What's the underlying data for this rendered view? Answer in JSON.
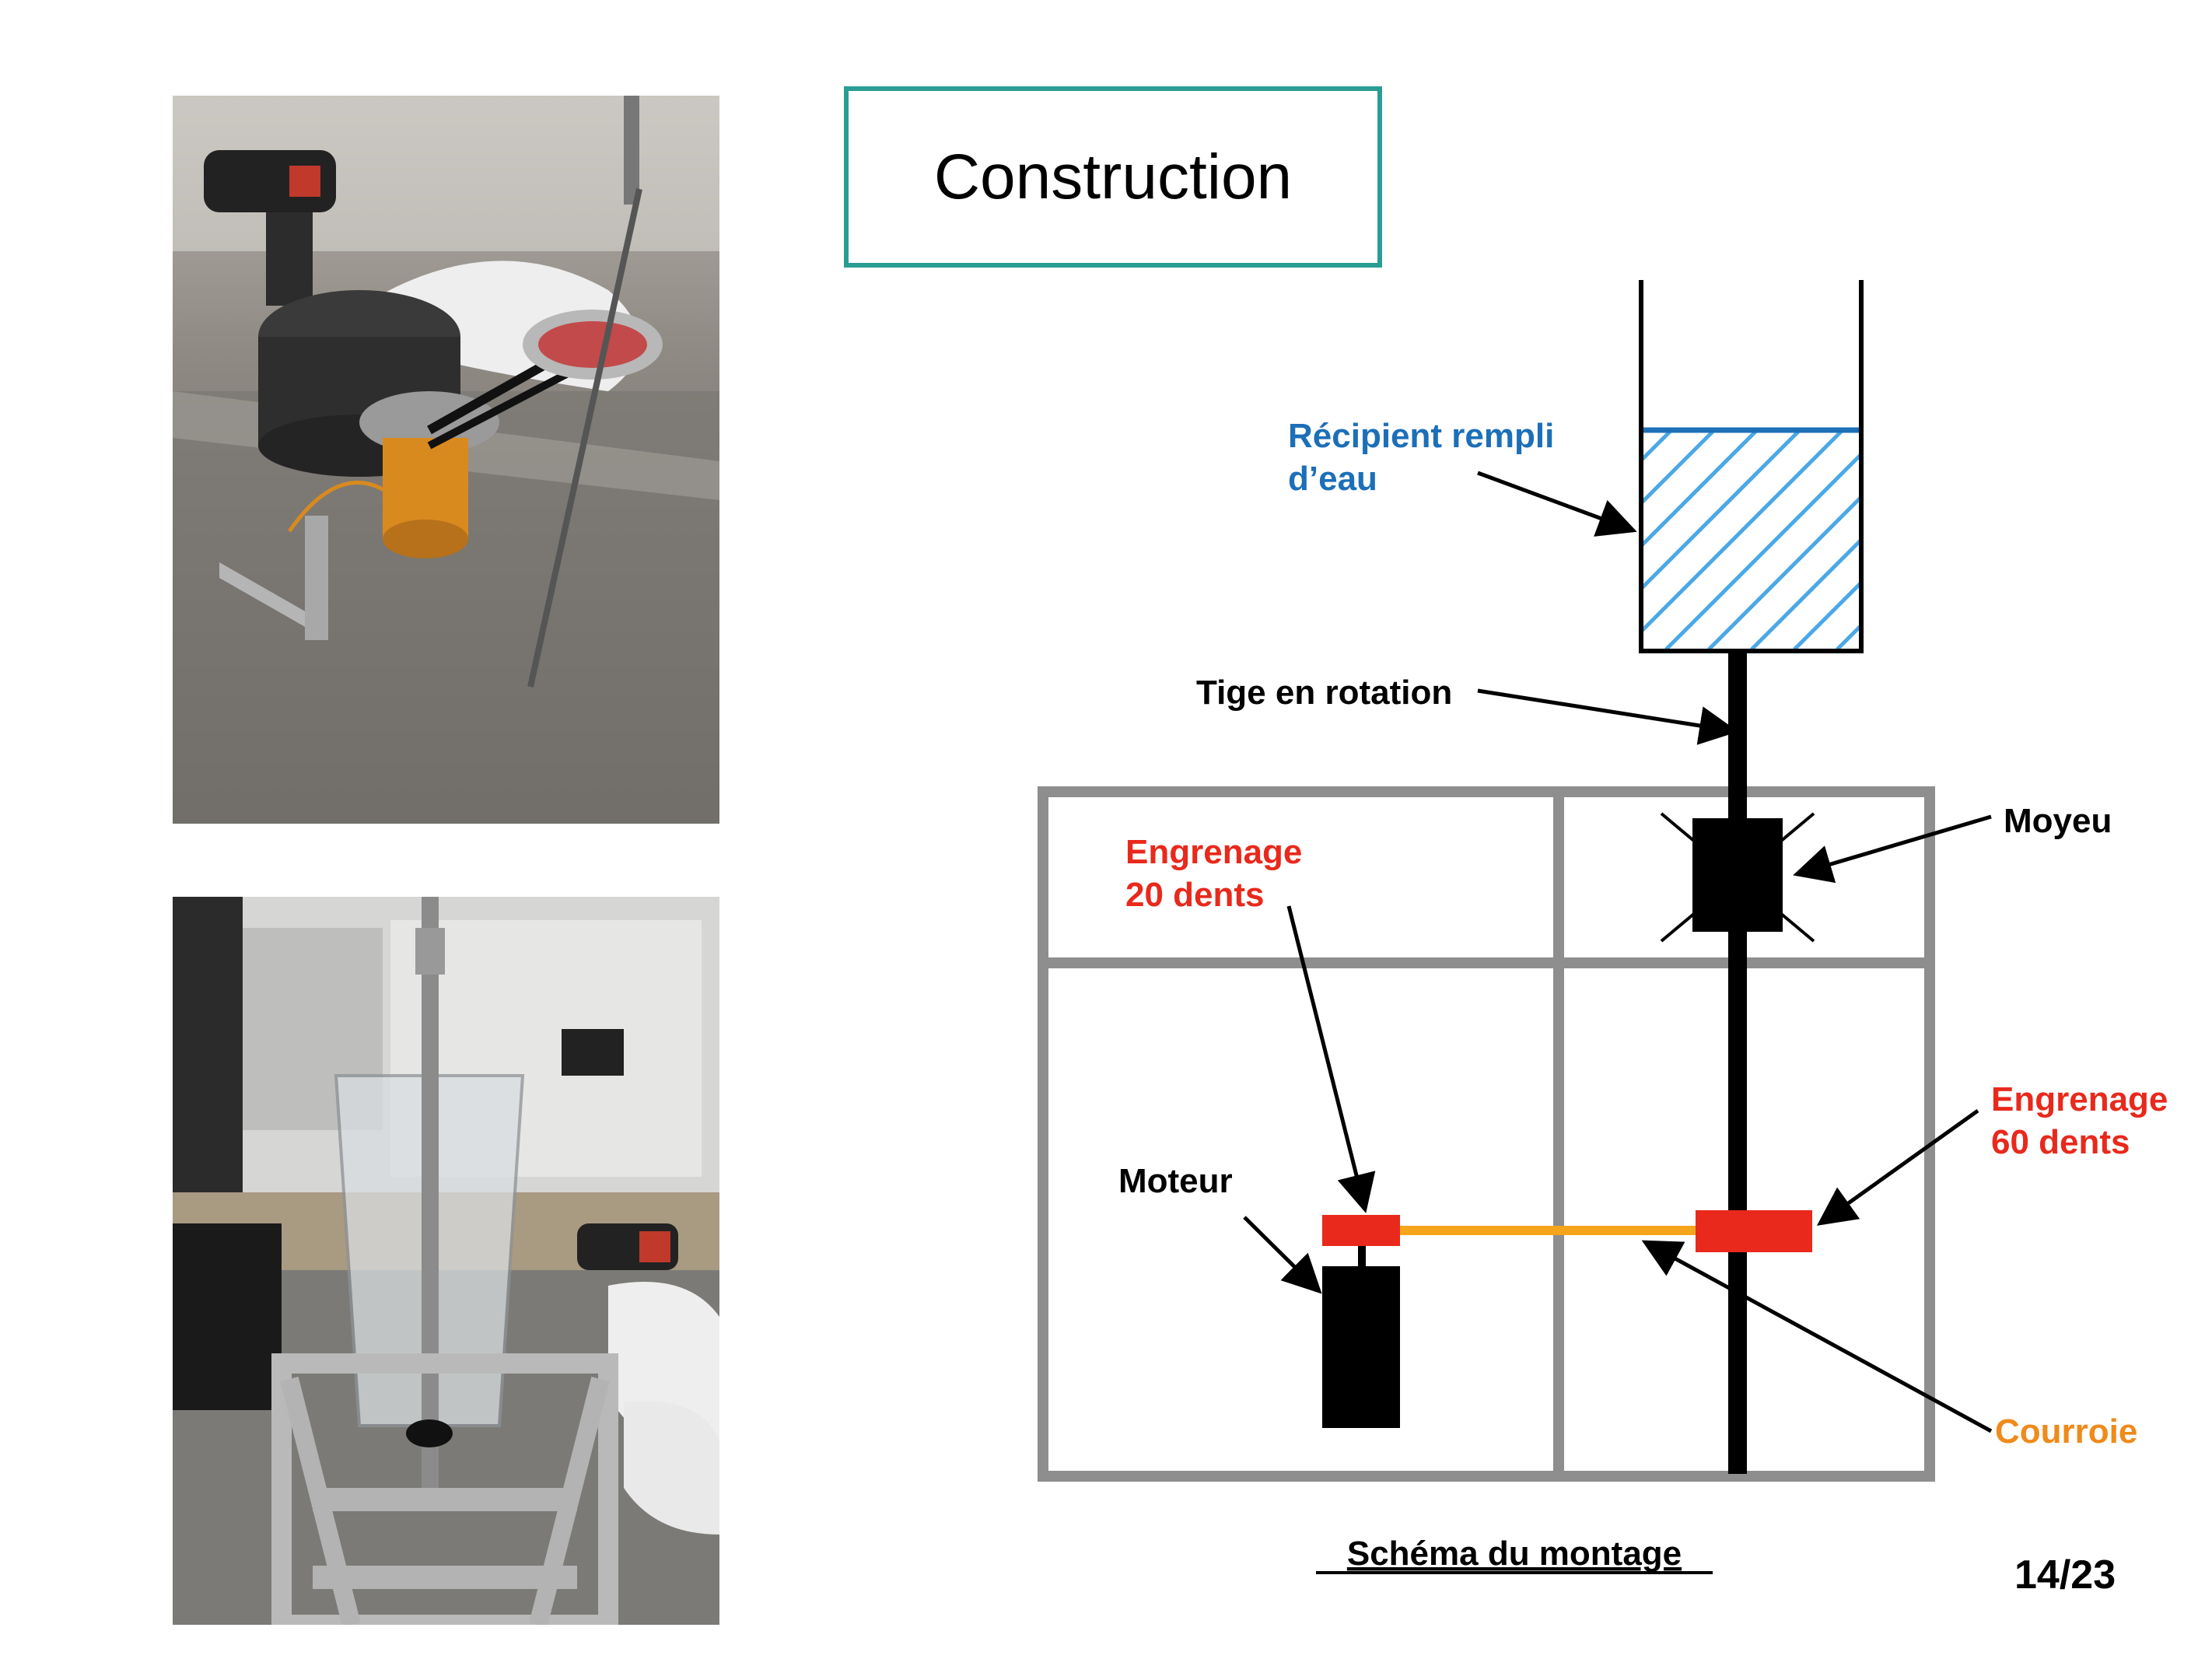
{
  "slide": {
    "title": "Construction",
    "page_number": "14/23"
  },
  "colors": {
    "title_border": "#2a9d93",
    "frame": "#8e8e8e",
    "water_label": "#1c6fb8",
    "water_hatch": "#4aa8e6",
    "gear": "#e8291c",
    "belt": "#f4a51c",
    "belt_label": "#f08a1a",
    "black": "#000000"
  },
  "photos": {
    "top": "photo-motor-belt-assembly",
    "bottom": "photo-frame-with-container"
  },
  "diagram": {
    "caption": "Schéma du montage",
    "labels": {
      "container_line1": "Récipient rempli",
      "container_line2": "d’eau",
      "shaft": "Tige en rotation",
      "hub": "Moyeu",
      "gear_small_line1": "Engrenage",
      "gear_small_line2": "20 dents",
      "gear_large_line1": "Engrenage",
      "gear_large_line2": "60 dents",
      "motor": "Moteur",
      "belt": "Courroie"
    }
  }
}
